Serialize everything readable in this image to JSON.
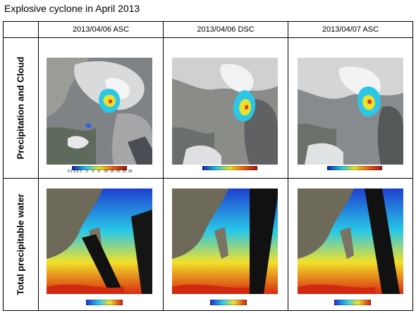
{
  "title": "Explosive cyclone in April 2013",
  "columns": [
    "2013/04/06  ASC",
    "2013/04/06 DSC",
    "2013/04/07 ASC"
  ],
  "rows": [
    {
      "label": "Precipitation and Cloud",
      "legend_type": "precip"
    },
    {
      "label": "Total precipitable water",
      "legend_type": "tpw"
    }
  ],
  "precip_scale_ticks": [
    "0.1",
    "0.5",
    "1",
    "2",
    "3",
    "5",
    "10",
    "15",
    "20",
    "25",
    "30"
  ],
  "colors": {
    "cloud_gray": "#8a8d8f",
    "cloud_white": "#f2f2f2",
    "ocean_dark": "#1b2436",
    "tpw_blue": "#1f3fcf",
    "tpw_cyan": "#28c8e8",
    "tpw_yellow": "#f2e02a",
    "tpw_red": "#d82a10"
  }
}
